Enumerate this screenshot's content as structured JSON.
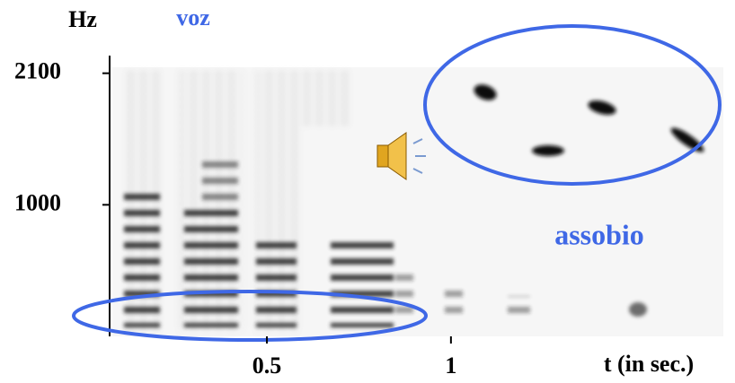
{
  "chart_data": {
    "type": "spectrogram",
    "y_label": "Hz",
    "x_label": "t (in sec.)",
    "annotations": [
      "voz",
      "assobio"
    ],
    "xlim": [
      0.08,
      1.74
    ],
    "ylim": [
      -100,
      2150
    ],
    "xticks": [
      0.5,
      1
    ],
    "yticks": [
      1000,
      2100
    ]
  }
}
